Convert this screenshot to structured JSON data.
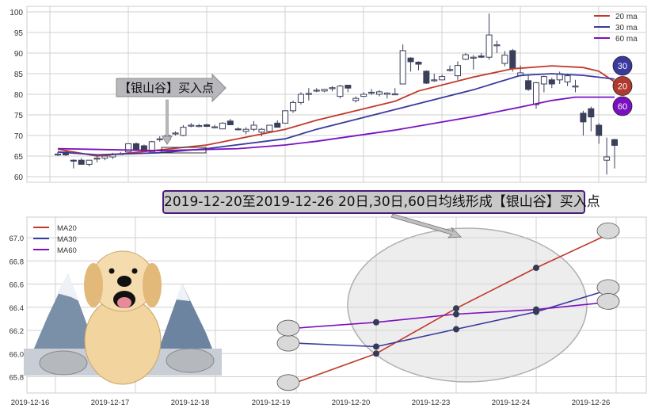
{
  "chart_data": [
    {
      "type": "candlestick",
      "ylim": [
        59,
        101
      ],
      "yticks": [
        "60",
        "65",
        "70",
        "75",
        "80",
        "85",
        "90",
        "95",
        "100"
      ],
      "grid": true,
      "legend_placement": "top-right",
      "ohlc": [
        [
          65.5,
          66,
          65,
          65.5
        ],
        [
          66,
          66.5,
          65,
          65.3
        ],
        [
          64,
          64.2,
          62,
          63.9
        ],
        [
          64,
          64.5,
          63,
          63
        ],
        [
          63,
          64,
          62.5,
          64
        ],
        [
          64.3,
          65,
          63.5,
          64.5
        ],
        [
          64.5,
          65.3,
          64,
          65
        ],
        [
          64.8,
          65.8,
          64.3,
          65.5
        ],
        [
          65.5,
          66,
          65.3,
          65.6
        ],
        [
          66,
          68,
          65.8,
          68
        ],
        [
          68,
          68.3,
          66.5,
          66.5
        ],
        [
          67.5,
          67.8,
          66,
          66.1
        ],
        [
          66,
          68.7,
          66,
          68.5
        ],
        [
          69,
          69.8,
          68.5,
          69.2
        ],
        [
          69,
          70.5,
          68.5,
          70
        ],
        [
          70.4,
          71,
          70,
          70.6
        ],
        [
          70,
          72.5,
          69.8,
          72
        ],
        [
          72.4,
          73,
          72,
          72.5
        ],
        [
          72.3,
          72.8,
          72,
          72.4
        ],
        [
          72.6,
          72.8,
          72.1,
          72.2
        ],
        [
          72,
          72.6,
          71.7,
          72.1
        ],
        [
          71.6,
          73.2,
          71.5,
          73
        ],
        [
          73.5,
          74,
          72.6,
          72.6
        ],
        [
          71.6,
          72,
          71.3,
          71.5
        ],
        [
          71,
          72,
          70.3,
          71.5
        ],
        [
          71.5,
          73.5,
          71,
          72.5
        ],
        [
          70.8,
          71.8,
          69.8,
          71.5
        ],
        [
          71,
          72.6,
          71,
          72.5
        ],
        [
          73,
          73.7,
          72,
          72
        ],
        [
          73,
          76,
          73,
          76
        ],
        [
          76,
          78.5,
          75.5,
          78
        ],
        [
          78,
          80.5,
          77.5,
          80
        ],
        [
          80,
          81.5,
          78.5,
          80.2
        ],
        [
          81,
          81.5,
          80.5,
          81
        ],
        [
          80.8,
          81.3,
          80.5,
          81.2
        ],
        [
          81.5,
          82,
          80.7,
          81.6
        ],
        [
          79.5,
          82.3,
          79,
          82
        ],
        [
          82.2,
          82.3,
          80.5,
          81.5
        ],
        [
          78.5,
          79.5,
          78,
          79
        ],
        [
          79.5,
          80.5,
          79.3,
          80
        ],
        [
          80.5,
          81.3,
          79.8,
          80.5
        ],
        [
          80,
          81,
          79.5,
          80.6
        ],
        [
          80,
          80.5,
          79,
          80.3
        ],
        [
          80,
          81.5,
          79.8,
          80.1
        ],
        [
          82.5,
          92.1,
          82.5,
          90.6
        ],
        [
          88.8,
          89,
          85.5,
          87.9
        ],
        [
          87.8,
          88,
          85.8,
          87.3
        ],
        [
          85.6,
          85.8,
          82.5,
          82.7
        ],
        [
          83.4,
          85,
          83,
          83.5
        ],
        [
          83.5,
          84.8,
          83.5,
          84.3
        ],
        [
          86,
          87,
          85.5,
          86
        ],
        [
          84.5,
          88,
          83.5,
          87
        ],
        [
          88.5,
          90,
          88.3,
          89.6
        ],
        [
          89,
          89.5,
          86,
          89
        ],
        [
          89.3,
          90,
          88.8,
          89
        ],
        [
          89,
          99.6,
          88.4,
          94.4
        ],
        [
          92,
          93,
          90,
          92
        ],
        [
          87.5,
          90.5,
          86.8,
          89.5
        ],
        [
          90.6,
          91,
          85.5,
          86.3
        ],
        [
          84.5,
          87,
          84.3,
          85.2
        ],
        [
          83.3,
          84.8,
          80.8,
          81.2
        ],
        [
          77.5,
          83,
          76.5,
          82.8
        ],
        [
          82.5,
          84.5,
          80.5,
          84.3
        ],
        [
          83.5,
          84,
          81.5,
          82.5
        ],
        [
          83.5,
          85.5,
          82.5,
          85
        ],
        [
          83,
          85,
          82,
          84.5
        ],
        [
          82,
          83.5,
          80.5,
          82
        ],
        [
          75.4,
          76,
          70,
          73.3
        ],
        [
          76.5,
          77,
          71,
          74.5
        ],
        [
          72.5,
          73,
          68,
          70
        ],
        [
          64,
          69.5,
          60.5,
          64.8
        ],
        [
          69,
          69.2,
          62,
          67.6
        ]
      ],
      "series": [
        {
          "name": "20 ma",
          "color": "#c0392b",
          "points": [
            [
              0,
              66.7
            ],
            [
              5,
              65
            ],
            [
              8,
              65.5
            ],
            [
              19,
              67.7
            ],
            [
              29,
              71.5
            ],
            [
              33,
              73.7
            ],
            [
              43,
              78.3
            ],
            [
              46,
              80.8
            ],
            [
              53,
              84.2
            ],
            [
              58,
              86.2
            ],
            [
              63,
              86.9
            ],
            [
              67,
              86.5
            ],
            [
              69,
              85.6
            ],
            [
              71,
              83
            ]
          ]
        },
        {
          "name": "30 ma",
          "color": "#3a3a9e",
          "points": [
            [
              0,
              66
            ],
            [
              5,
              65.3
            ],
            [
              13,
              65.8
            ],
            [
              19,
              66.8
            ],
            [
              29,
              69.2
            ],
            [
              33,
              71.5
            ],
            [
              43,
              76.3
            ],
            [
              53,
              81.1
            ],
            [
              59,
              84.6
            ],
            [
              63,
              85
            ],
            [
              67,
              84.6
            ],
            [
              71,
              83.7
            ]
          ]
        },
        {
          "name": "60 ma",
          "color": "#7a10c0",
          "points": [
            [
              0,
              66.8
            ],
            [
              13,
              66.3
            ],
            [
              23,
              66.8
            ],
            [
              29,
              67.7
            ],
            [
              33,
              68.6
            ],
            [
              43,
              71.3
            ],
            [
              53,
              74.6
            ],
            [
              59,
              76.9
            ],
            [
              63,
              78.5
            ],
            [
              66,
              79.3
            ],
            [
              71,
              79.3
            ]
          ]
        }
      ],
      "end_badges": [
        {
          "label": "30",
          "color": "#3a3a9e"
        },
        {
          "label": "20",
          "color": "#b03a2e"
        },
        {
          "label": "60",
          "color": "#7a10c0"
        }
      ],
      "annotation": "【银山谷】买入点"
    },
    {
      "type": "line",
      "title": "2019-12-20至2019-12-26 20日,30日,60日均线形成【银山谷】买入点",
      "categories": [
        "2019-12-16",
        "2019-12-17",
        "2019-12-18",
        "2019-12-19",
        "2019-12-20",
        "2019-12-23",
        "2019-12-24",
        "2019-12-26"
      ],
      "ylim": [
        65.65,
        67.18
      ],
      "yticks": [
        "65.8",
        "66.0",
        "66.2",
        "66.4",
        "66.6",
        "66.8",
        "67.0"
      ],
      "grid": true,
      "legend_placement": "top-left",
      "series": [
        {
          "name": "MA20",
          "color": "#c0392b",
          "x": [
            "2019-12-19",
            "2019-12-20",
            "2019-12-23",
            "2019-12-24",
            "2019-12-26"
          ],
          "values": [
            65.75,
            66.0,
            66.39,
            66.74,
            67.06
          ]
        },
        {
          "name": "MA30",
          "color": "#3a3a9e",
          "x": [
            "2019-12-19",
            "2019-12-20",
            "2019-12-23",
            "2019-12-24",
            "2019-12-26"
          ],
          "values": [
            66.09,
            66.06,
            66.21,
            66.36,
            66.57
          ]
        },
        {
          "name": "MA60",
          "color": "#7a10c0",
          "x": [
            "2019-12-19",
            "2019-12-20",
            "2019-12-23",
            "2019-12-24",
            "2019-12-26"
          ],
          "values": [
            66.22,
            66.27,
            66.34,
            66.38,
            66.45
          ]
        }
      ]
    }
  ]
}
